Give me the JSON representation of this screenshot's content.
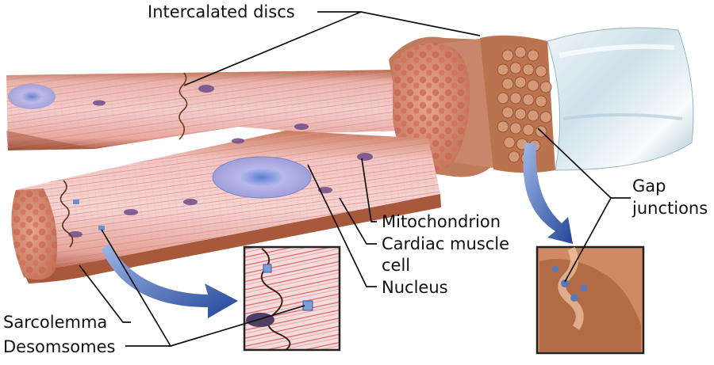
{
  "labels": {
    "intercalated_discs": "Intercalated discs",
    "gap_junctions_line1": "Gap",
    "gap_junctions_line2": "junctions",
    "mitochondrion": "Mitochondrion",
    "cardiac_muscle_line1": "Cardiac muscle",
    "cardiac_muscle_line2": "cell",
    "nucleus": "Nucleus",
    "sarcolemma": "Sarcolemma",
    "desomsomes": "Desomsomes"
  },
  "colors": {
    "tissue_base": "#c98a6e",
    "tissue_pink": "#efc4c4",
    "membrane": "#b8663f",
    "stripe": "#d9706b",
    "nucleus": "#a9a9e0",
    "mitochondria": "#6b4f86",
    "sleeve": "#d6e6ee",
    "arrow": "#2f58a8",
    "leader": "#111111"
  }
}
